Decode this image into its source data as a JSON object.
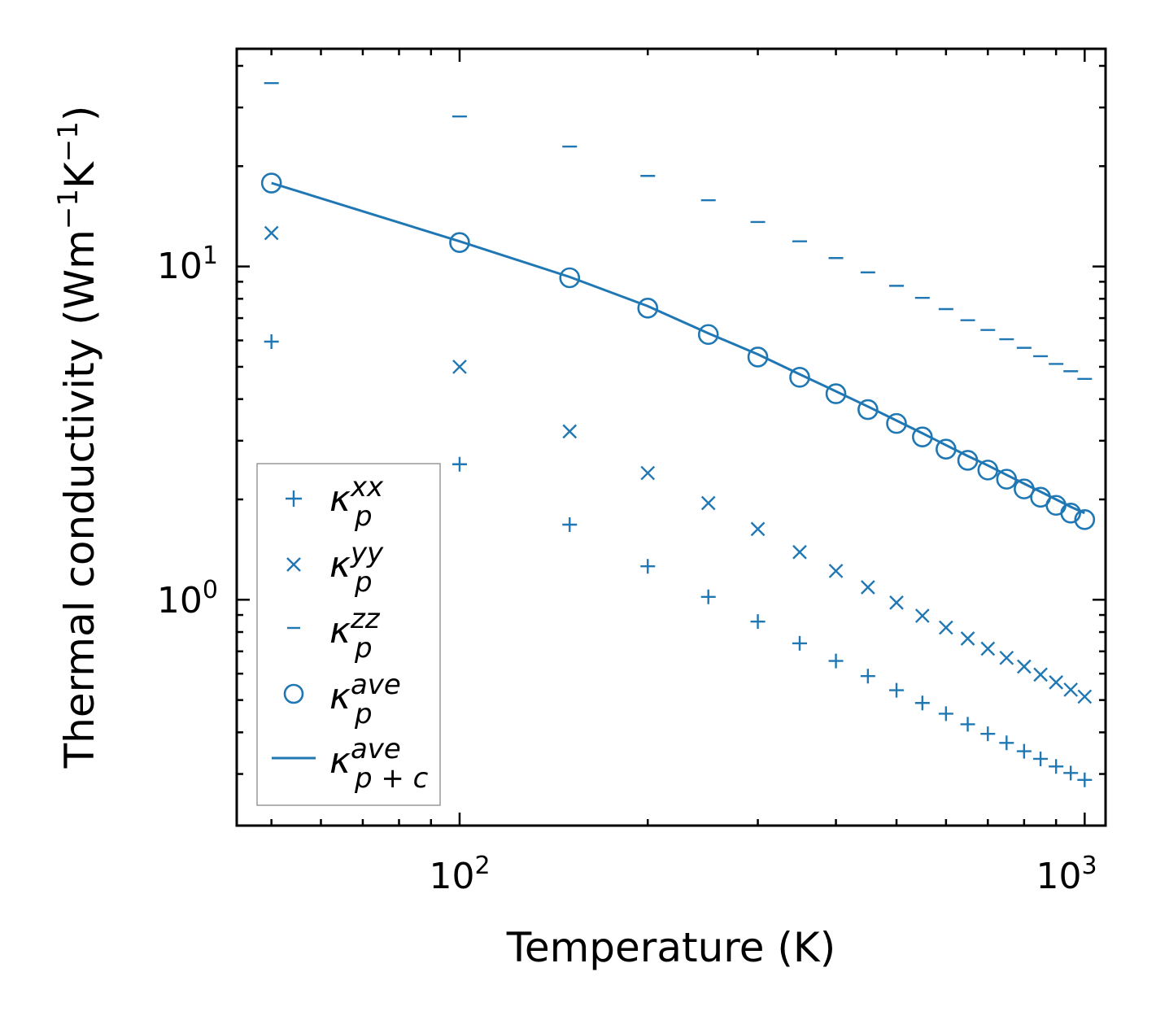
{
  "chart_data": {
    "type": "scatter",
    "xscale": "log",
    "yscale": "log",
    "xlim": [
      44,
      1080
    ],
    "ylim": [
      0.21,
      45
    ],
    "xlabel": "Temperature (K)",
    "ylabel": {
      "base": "Thermal conductivity (Wm",
      "exp1": "−1",
      "mid": "K",
      "exp2": "−1",
      "close": ")"
    },
    "xticks": [
      {
        "base": "10",
        "exp": "2",
        "value": 100
      },
      {
        "base": "10",
        "exp": "3",
        "value": 1000
      }
    ],
    "yticks": [
      {
        "base": "10",
        "exp": "0",
        "value": 1
      },
      {
        "base": "10",
        "exp": "1",
        "value": 10
      }
    ],
    "x": [
      50,
      100,
      150,
      200,
      250,
      300,
      350,
      400,
      450,
      500,
      550,
      600,
      650,
      700,
      750,
      800,
      850,
      900,
      950,
      1000
    ],
    "color": "#1f77b4",
    "series": [
      {
        "name": "kappa_p^xx",
        "marker": "plus",
        "values": [
          5.95,
          2.55,
          1.68,
          1.26,
          1.02,
          0.86,
          0.74,
          0.655,
          0.59,
          0.535,
          0.49,
          0.455,
          0.423,
          0.396,
          0.372,
          0.351,
          0.333,
          0.316,
          0.302,
          0.288
        ]
      },
      {
        "name": "kappa_p^yy",
        "marker": "x",
        "values": [
          12.6,
          5.0,
          3.2,
          2.4,
          1.95,
          1.63,
          1.39,
          1.22,
          1.09,
          0.98,
          0.895,
          0.825,
          0.765,
          0.713,
          0.669,
          0.63,
          0.596,
          0.565,
          0.537,
          0.512
        ]
      },
      {
        "name": "kappa_p^zz",
        "marker": "hline",
        "values": [
          35.5,
          28.2,
          22.9,
          18.7,
          15.8,
          13.6,
          11.9,
          10.6,
          9.6,
          8.75,
          8.05,
          7.45,
          6.9,
          6.45,
          6.05,
          5.7,
          5.38,
          5.1,
          4.85,
          4.6
        ]
      },
      {
        "name": "kappa_p^ave",
        "marker": "circle",
        "values": [
          17.8,
          11.8,
          9.25,
          7.5,
          6.25,
          5.35,
          4.65,
          4.15,
          3.72,
          3.38,
          3.08,
          2.83,
          2.62,
          2.45,
          2.3,
          2.15,
          2.03,
          1.92,
          1.82,
          1.74
        ]
      },
      {
        "name": "kappa_p+c^ave",
        "marker": "line",
        "values": [
          17.8,
          11.9,
          9.3,
          7.6,
          6.3,
          5.45,
          4.75,
          4.22,
          3.8,
          3.45,
          3.16,
          2.91,
          2.7,
          2.53,
          2.37,
          2.23,
          2.11,
          2.0,
          1.9,
          1.82
        ]
      }
    ],
    "legend": {
      "position": "lower-left",
      "entries": [
        {
          "symbol": "κ",
          "sub": "p",
          "sup": "xx"
        },
        {
          "symbol": "κ",
          "sub": "p",
          "sup": "yy"
        },
        {
          "symbol": "κ",
          "sub": "p",
          "sup": "zz"
        },
        {
          "symbol": "κ",
          "sub": "p",
          "sup": "ave"
        },
        {
          "symbol": "κ",
          "sub": "p + c",
          "sup": "ave"
        }
      ]
    }
  }
}
